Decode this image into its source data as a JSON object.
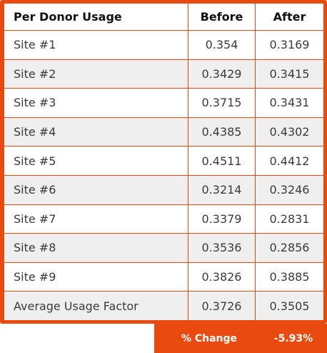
{
  "table": {
    "headers": [
      "Per Donor Usage",
      "Before",
      "After"
    ],
    "rows": [
      {
        "label": "Site #1",
        "before": "0.354",
        "after": "0.3169"
      },
      {
        "label": "Site #2",
        "before": "0.3429",
        "after": "0.3415"
      },
      {
        "label": "Site #3",
        "before": "0.3715",
        "after": "0.3431"
      },
      {
        "label": "Site #4",
        "before": "0.4385",
        "after": "0.4302"
      },
      {
        "label": "Site #5",
        "before": "0.4511",
        "after": "0.4412"
      },
      {
        "label": "Site #6",
        "before": "0.3214",
        "after": "0.3246"
      },
      {
        "label": "Site #7",
        "before": "0.3379",
        "after": "0.2831"
      },
      {
        "label": "Site #8",
        "before": "0.3536",
        "after": "0.2856"
      },
      {
        "label": "Site #9",
        "before": "0.3826",
        "after": "0.3885"
      },
      {
        "label": "Average Usage Factor",
        "before": "0.3726",
        "after": "0.3505"
      }
    ]
  },
  "change": {
    "label": "% Change",
    "value": "-5.93%"
  },
  "colors": {
    "accent": "#e84a0f",
    "row_alt": "#efefef"
  }
}
